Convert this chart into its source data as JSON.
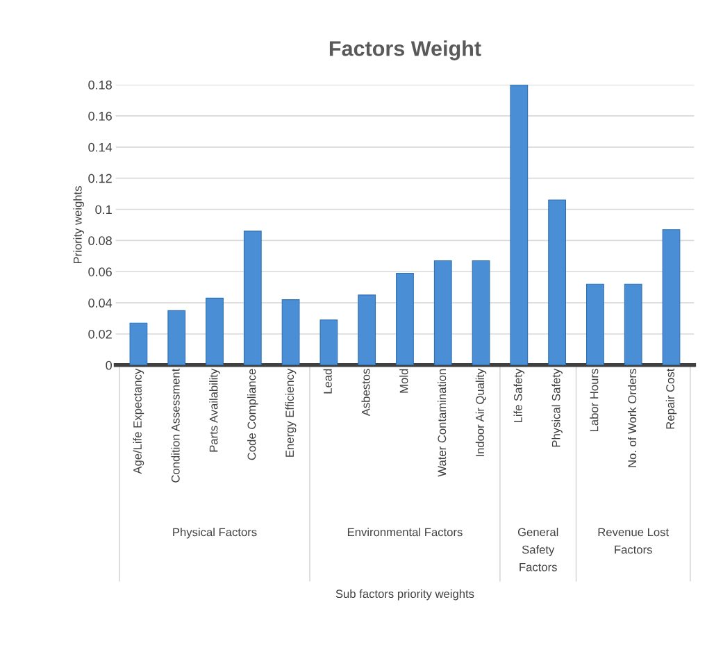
{
  "chart_data": {
    "type": "bar",
    "title": "Factors Weight",
    "ylabel": "Priority weights",
    "categories": [
      "Age/Life Expectancy",
      "Condition Assessment",
      "Parts Availability",
      "Code Compliance",
      "Energy Efficiency",
      "Lead",
      "Asbestos",
      "Mold",
      "Water Contamination",
      "Indoor Air Quality",
      "Life Safety",
      "Physical Safety",
      "Labor Hours",
      "No. of Work Orders",
      "Repair Cost"
    ],
    "values": [
      0.027,
      0.035,
      0.043,
      0.086,
      0.042,
      0.029,
      0.045,
      0.059,
      0.067,
      0.067,
      0.18,
      0.106,
      0.052,
      0.052,
      0.087
    ],
    "color": "#4a8fd6",
    "ylim": [
      0,
      0.18
    ],
    "yticks": [
      0,
      0.02,
      0.04,
      0.06,
      0.08,
      0.1,
      0.12,
      0.14,
      0.16,
      0.18
    ],
    "grid": "y",
    "annotations": [
      "Physical Factors",
      "Environmental Factors",
      "General\nSafety\nFactors",
      "Revenue Lost\nFactors",
      "Sub factors priority weights"
    ]
  }
}
